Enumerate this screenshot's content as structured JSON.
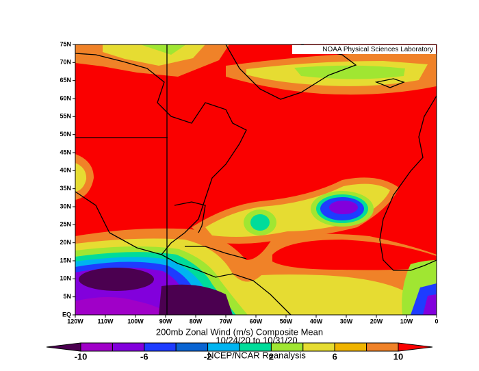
{
  "credit": "NOAA Physical Sciences Laboratory",
  "lat_ticks": [
    "75N",
    "70N",
    "65N",
    "60N",
    "55N",
    "50N",
    "45N",
    "40N",
    "35N",
    "30N",
    "25N",
    "20N",
    "15N",
    "10N",
    "5N",
    "EQ"
  ],
  "lon_ticks": [
    "120W",
    "110W",
    "100W",
    "90W",
    "80W",
    "70W",
    "60W",
    "50W",
    "40W",
    "30W",
    "20W",
    "10W",
    "0"
  ],
  "title": "200mb Zonal Wind (m/s) Composite Mean",
  "subtitle": "10/24/20  to 10/31/20",
  "source": "NCEP/NCAR Reanalysis",
  "colorbar": {
    "range": [
      -10,
      10
    ],
    "ticks": [
      -10,
      -6,
      -2,
      2,
      6,
      10
    ],
    "colors": [
      "#4b0050",
      "#a000c8",
      "#8200dc",
      "#1e3cff",
      "#0a64d2",
      "#00b4f0",
      "#00dc9a",
      "#a0e632",
      "#e6dc32",
      "#f0b400",
      "#f08228",
      "#fa0000"
    ]
  }
}
